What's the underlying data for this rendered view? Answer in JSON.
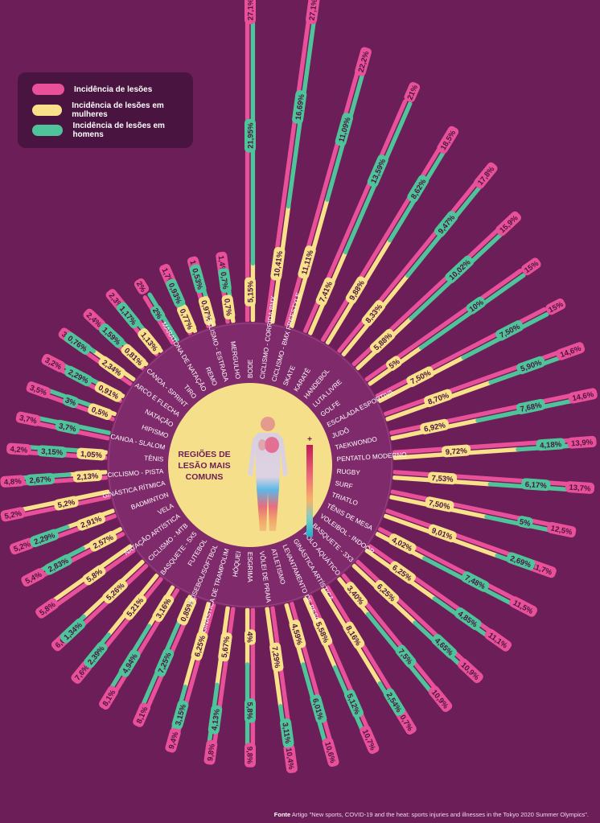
{
  "legend": {
    "total": "Incidência de lesões",
    "women": "Incidência de lesões em mulheres",
    "men": "Incidência de lesões em homens"
  },
  "colors": {
    "background": "#6b1e57",
    "total": "#e8509a",
    "women": "#f9e08a",
    "men": "#4fc49a",
    "center": "#f5df8a"
  },
  "center": {
    "title_lines": [
      "REGIÕES DE",
      "LESÃO MAIS",
      "COMUNS"
    ],
    "scale_plus": "+",
    "scale_minus": "-",
    "icon": "human-body-heatmap-icon"
  },
  "source": {
    "label": "Fonte",
    "text": "Artigo \"New sports, COVID-19 and the heat: sports injuries and illnesses in the Tokyo 2020 Summer Olympics\"."
  },
  "chart_data": {
    "type": "radial-bar",
    "unit": "%",
    "series": [
      {
        "name": "Incidência de lesões",
        "key": "total"
      },
      {
        "name": "Incidência de lesões em mulheres",
        "key": "women"
      },
      {
        "name": "Incidência de lesões em homens",
        "key": "men"
      }
    ],
    "categories": [
      {
        "sport": "BODE",
        "total": 27.1,
        "women": 5.15,
        "men": 21.95,
        "labels": {
          "total": "27,1%",
          "women": "5,15%",
          "men": "21,95%"
        }
      },
      {
        "sport": "CICLISMO - CORRIDA BMX",
        "total": 27.1,
        "women": 10.41,
        "men": 16.69,
        "labels": {
          "total": "27,1%",
          "women": "10,41%",
          "men": "16,69%"
        }
      },
      {
        "sport": "CICLISMO - BMX FREESTYLE",
        "total": 22.2,
        "women": 11.11,
        "men": 11.09,
        "labels": {
          "total": "22,2%",
          "women": "11,11%",
          "men": "11,09%"
        }
      },
      {
        "sport": "SKATE",
        "total": 21,
        "women": 7.41,
        "men": 13.59,
        "labels": {
          "total": "21%",
          "women": "7,41%",
          "men": "13,59%"
        }
      },
      {
        "sport": "KARATÊ",
        "total": 18.5,
        "women": 9.88,
        "men": 8.62,
        "labels": {
          "total": "18,5%",
          "women": "9,88%",
          "men": "8,62%"
        }
      },
      {
        "sport": "HANDEBOL",
        "total": 17.8,
        "women": 8.33,
        "men": 9.47,
        "labels": {
          "total": "17,8%",
          "women": "8,33%",
          "men": "9,47%"
        }
      },
      {
        "sport": "LUTA LIVRE",
        "total": 15.9,
        "women": 5.88,
        "men": 10.02,
        "labels": {
          "total": "15,9%",
          "women": "5,88%",
          "men": "10,02%"
        }
      },
      {
        "sport": "GOLFE",
        "total": 15,
        "women": 5,
        "men": 10,
        "labels": {
          "total": "15%",
          "women": "5%",
          "men": "10%"
        }
      },
      {
        "sport": "ESCALADA ESPORTIVA",
        "total": 15,
        "women": 7.5,
        "men": 7.5,
        "labels": {
          "total": "15%",
          "women": "7,50%",
          "men": "7,50%"
        }
      },
      {
        "sport": "JUDÔ",
        "total": 14.6,
        "women": 8.7,
        "men": 5.9,
        "labels": {
          "total": "14,6%",
          "women": "8,70%",
          "men": "5,90%"
        }
      },
      {
        "sport": "TAEKWONDO",
        "total": 14.6,
        "women": 6.92,
        "men": 7.68,
        "labels": {
          "total": "14,6%",
          "women": "6,92%",
          "men": "7,68%"
        }
      },
      {
        "sport": "PENTATLO MODERNO",
        "total": 13.9,
        "women": 9.72,
        "men": 4.18,
        "labels": {
          "total": "13,9%",
          "women": "9,72%",
          "men": "4,18%"
        }
      },
      {
        "sport": "RUGBY",
        "total": 13.7,
        "women": 7.53,
        "men": 6.17,
        "labels": {
          "total": "13,7%",
          "women": "7,53%",
          "men": "6,17%"
        }
      },
      {
        "sport": "SURF",
        "total": 12.5,
        "women": 7.5,
        "men": 5,
        "labels": {
          "total": "12,5%",
          "women": "7,50%",
          "men": "5%"
        }
      },
      {
        "sport": "TRIATLO",
        "total": 11.7,
        "women": 9.01,
        "men": 2.69,
        "labels": {
          "total": "11,7%",
          "women": "9,01%",
          "men": "2,69%"
        }
      },
      {
        "sport": "TÊNIS DE MESA",
        "total": 11.5,
        "women": 4.02,
        "men": 7.48,
        "labels": {
          "total": "11,5%",
          "women": "4,02%",
          "men": "7,48%"
        }
      },
      {
        "sport": "VOLEIBOL - INDOOR",
        "total": 11.1,
        "women": 6.25,
        "men": 4.85,
        "labels": {
          "total": "11,1%",
          "women": "6,25%",
          "men": "4,85%"
        }
      },
      {
        "sport": "BASQUETE - 3X3",
        "total": 10.9,
        "women": 6.25,
        "men": 4.65,
        "labels": {
          "total": "10,9%",
          "women": "6,25%",
          "men": "4,65%"
        }
      },
      {
        "sport": "POLO AQUÁTICO",
        "total": 10.9,
        "women": 3.4,
        "men": 7.5,
        "labels": {
          "total": "10,9%",
          "women": "3,40%",
          "men": "7,5%"
        }
      },
      {
        "sport": "GINÁSTICA ARTÍSTICA",
        "total": 10.7,
        "women": 8.16,
        "men": 2.54,
        "labels": {
          "total": "10,7%",
          "women": "8,16%",
          "men": "2,54%"
        }
      },
      {
        "sport": "LEVANTAMENTO DE PESO",
        "total": 10.7,
        "women": 5.58,
        "men": 5.12,
        "labels": {
          "total": "10,7%",
          "women": "5,58%",
          "men": "5,12%"
        }
      },
      {
        "sport": "ATLETISMO",
        "total": 10.6,
        "women": 4.59,
        "men": 6.01,
        "labels": {
          "total": "10,6%",
          "women": "4,59%",
          "men": "6,01%"
        }
      },
      {
        "sport": "VÔLEI DE PRAIA",
        "total": 10.4,
        "women": 7.29,
        "men": 3.11,
        "labels": {
          "total": "10,4%",
          "women": "7,29%",
          "men": "3,11%"
        }
      },
      {
        "sport": "ESGRIMA",
        "total": 9.8,
        "women": 4,
        "men": 5.8,
        "labels": {
          "total": "9,8%",
          "women": "4%",
          "men": "5,8%"
        }
      },
      {
        "sport": "HÓQUEI",
        "total": 9.8,
        "women": 5.67,
        "men": 4.13,
        "labels": {
          "total": "9,8%",
          "women": "5,67%",
          "men": "4,13%"
        }
      },
      {
        "sport": "GINÁSTICA DE TRAMPOLIM",
        "total": 9.4,
        "women": 6.25,
        "men": 3.15,
        "labels": {
          "total": "9,4%",
          "women": "6,25%",
          "men": "3,15%"
        }
      },
      {
        "sport": "BEISEBOL/SOFTBOL",
        "total": 8.1,
        "women": 0.85,
        "men": 7.25,
        "labels": {
          "total": "8,1%",
          "women": "0,85%",
          "men": "7,25%"
        }
      },
      {
        "sport": "FUTEBOL",
        "total": 8.1,
        "women": 3.16,
        "men": 4.94,
        "labels": {
          "total": "8,1%",
          "women": "3,16%",
          "men": "4,94%"
        }
      },
      {
        "sport": "BASQUETE - 5X5",
        "total": 7.6,
        "women": 5.21,
        "men": 2.39,
        "labels": {
          "total": "7,6%",
          "women": "5,21%",
          "men": "2,39%"
        }
      },
      {
        "sport": "CICLISMO - MTB",
        "total": 6.6,
        "women": 5.26,
        "men": 1.34,
        "labels": {
          "total": "6,6%",
          "women": "5,26%",
          "men": "1,34%"
        }
      },
      {
        "sport": "NATAÇÃO ARTÍSTICA",
        "total": 5.8,
        "women": 5.8,
        "men": 0,
        "labels": {
          "total": "5,8%",
          "women": "5,8%",
          "men": ""
        }
      },
      {
        "sport": "VELA",
        "total": 5.4,
        "women": 2.57,
        "men": 2.83,
        "labels": {
          "total": "5,4%",
          "women": "2,57%",
          "men": "2,83%"
        }
      },
      {
        "sport": "BADMINTON",
        "total": 5.2,
        "women": 2.91,
        "men": 2.29,
        "labels": {
          "total": "5,2%",
          "women": "2,91%",
          "men": "2,29%"
        }
      },
      {
        "sport": "GINÁSTICA RÍTMICA",
        "total": 5.2,
        "women": 5.2,
        "men": 0,
        "labels": {
          "total": "5,2%",
          "women": "5,2%",
          "men": ""
        }
      },
      {
        "sport": "CICLISMO - PISTA",
        "total": 4.8,
        "women": 2.13,
        "men": 2.67,
        "labels": {
          "total": "4,8%",
          "women": "2,13%",
          "men": "2,67%"
        }
      },
      {
        "sport": "TÊNIS",
        "total": 4.2,
        "women": 1.05,
        "men": 3.15,
        "labels": {
          "total": "4,2%",
          "women": "1,05%",
          "men": "3,15%"
        }
      },
      {
        "sport": "CANOA - SLALOM",
        "total": 3.7,
        "women": 0,
        "men": 3.7,
        "labels": {
          "total": "3,7%",
          "women": "",
          "men": "3,7%"
        }
      },
      {
        "sport": "HIPISMO",
        "total": 3.5,
        "women": 0.5,
        "men": 3,
        "labels": {
          "total": "3,5%",
          "women": "0,5%",
          "men": "3%"
        }
      },
      {
        "sport": "NATAÇÃO",
        "total": 3.2,
        "women": 0.91,
        "men": 2.29,
        "labels": {
          "total": "3,2%",
          "women": "0,91%",
          "men": "2,29%"
        }
      },
      {
        "sport": "ARCO E FLECHA",
        "total": 3.1,
        "women": 2.34,
        "men": 0.76,
        "labels": {
          "total": "3,1%",
          "women": "2,34%",
          "men": "0,76%"
        }
      },
      {
        "sport": "CANOA - SPRINT",
        "total": 2.4,
        "women": 0.81,
        "men": 1.59,
        "labels": {
          "total": "2,4%",
          "women": "0,81%",
          "men": "1,59%"
        }
      },
      {
        "sport": "TIRO",
        "total": 2.3,
        "women": 1.13,
        "men": 1.17,
        "labels": {
          "total": "2,3%",
          "women": "1,13%",
          "men": "1,17%"
        }
      },
      {
        "sport": "MARATONA DE NATAÇÃO",
        "total": 2,
        "women": 0,
        "men": 2,
        "labels": {
          "total": "2%",
          "women": "",
          "men": "2%"
        }
      },
      {
        "sport": "REMO",
        "total": 1.7,
        "women": 0.77,
        "men": 0.93,
        "labels": {
          "total": "1,7%",
          "women": "0,77%",
          "men": "0,93%"
        }
      },
      {
        "sport": "CICLISMO - ESTRADA",
        "total": 1.5,
        "women": 0.97,
        "men": 0.53,
        "labels": {
          "total": "1,5%",
          "women": "0,97%",
          "men": "0,53%"
        }
      },
      {
        "sport": "MERGULHO",
        "total": 1.4,
        "women": 0.7,
        "men": 0.7,
        "labels": {
          "total": "1,4%",
          "women": "0,7%",
          "men": "0,7%"
        }
      }
    ]
  }
}
